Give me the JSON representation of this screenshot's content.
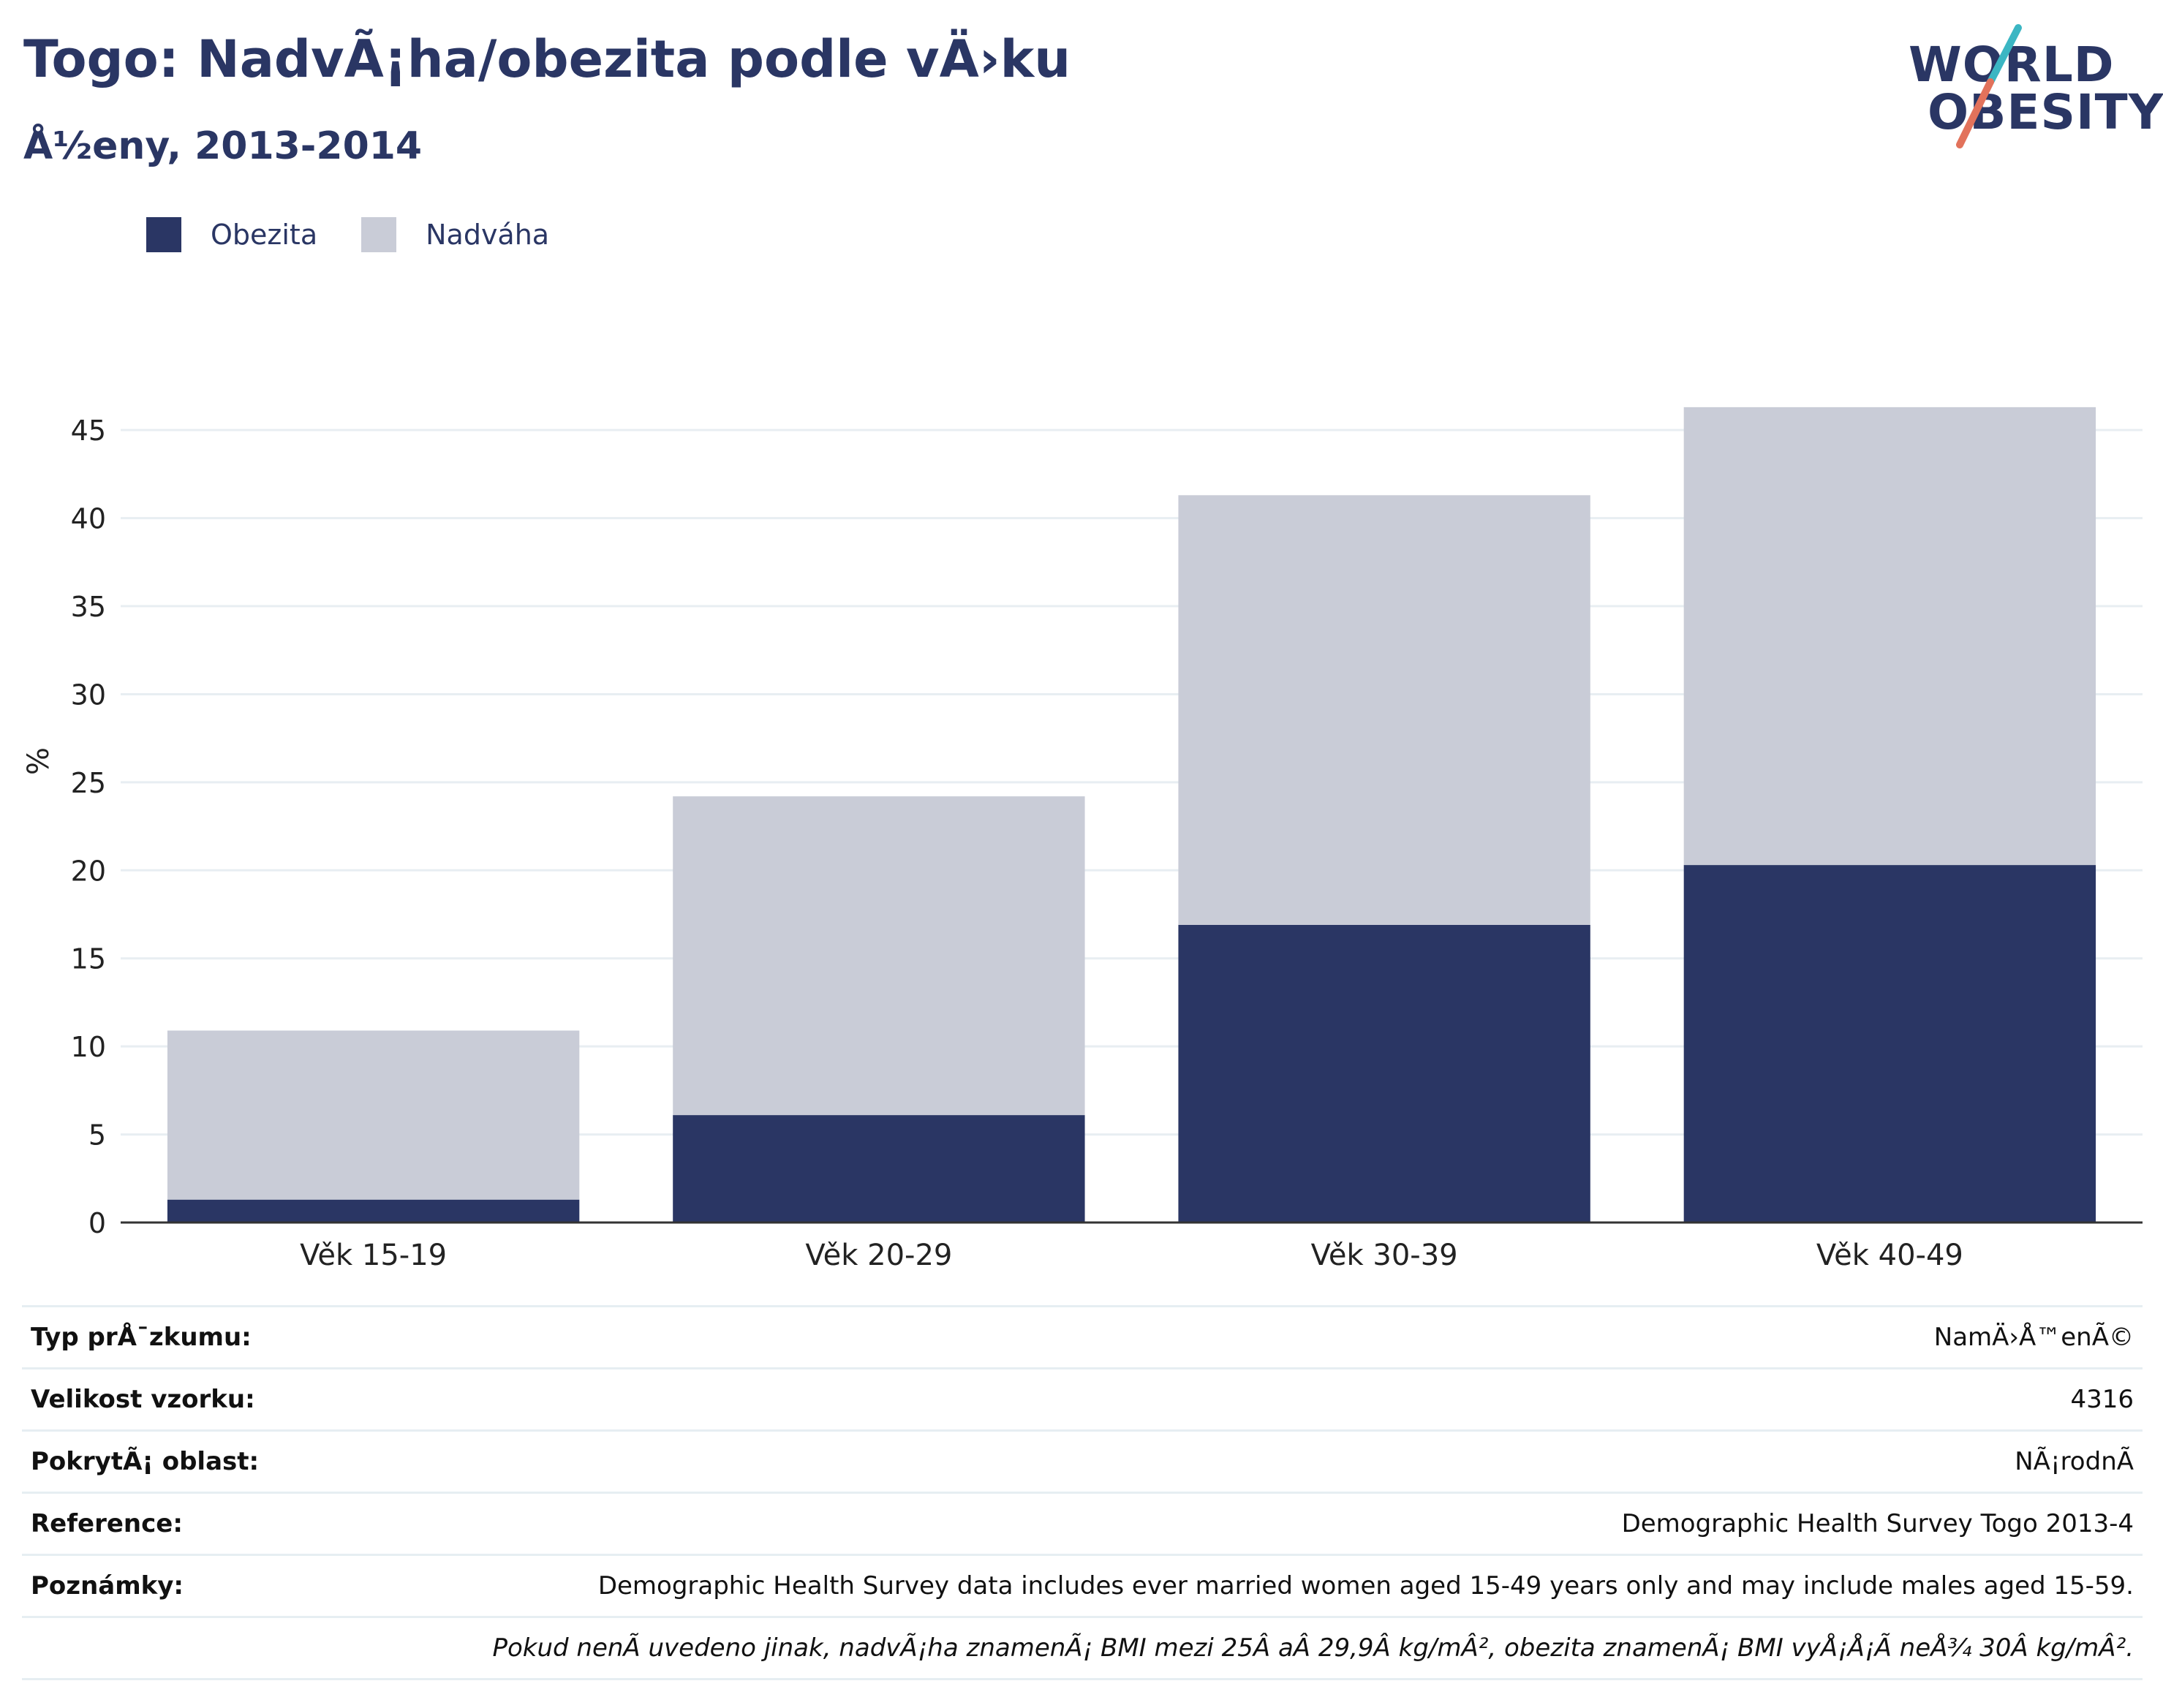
{
  "title": "Togo: NadvÃ¡ha/obezita podle vÄ›ku",
  "subtitle": "Å½eny, 2013-2014",
  "logo": {
    "line1": "WORLD",
    "line2": "OBESITY"
  },
  "colors": {
    "obesity": "#2a3664",
    "overweight": "#c9ccd7",
    "axis": "#333333",
    "grid": "#e8eef2"
  },
  "legend": [
    {
      "label": "Obezita",
      "color": "#2a3664"
    },
    {
      "label": "Nadváha",
      "color": "#c9ccd7"
    }
  ],
  "chart_data": {
    "type": "bar",
    "stacked": true,
    "categories": [
      "Věk 15-19",
      "Věk 20-29",
      "Věk 30-39",
      "Věk 40-49"
    ],
    "series": [
      {
        "name": "Obezita",
        "values": [
          1.3,
          6.1,
          16.9,
          20.3
        ]
      },
      {
        "name": "Nadváha",
        "values": [
          9.6,
          18.1,
          24.4,
          26.0
        ]
      }
    ],
    "ylabel": "%",
    "ylim": [
      0,
      47
    ],
    "yticks": [
      0,
      5,
      10,
      15,
      20,
      25,
      30,
      35,
      40,
      45
    ],
    "grid": true,
    "legend_position": "top-left"
  },
  "table": {
    "rows": [
      {
        "key": "Typ prÅ¯zkumu:",
        "value": "NamÄ›Å™enÃ©"
      },
      {
        "key": "Velikost vzorku:",
        "value": "4316"
      },
      {
        "key": "PokrytÃ¡ oblast:",
        "value": "NÃ¡rodnÃ"
      },
      {
        "key": "Reference:",
        "value": "Demographic Health Survey Togo 2013-4"
      },
      {
        "key": "Poznámky:",
        "value": "Demographic Health Survey data includes ever married women aged 15-49 years only and may include males aged 15-59."
      }
    ],
    "footnote": "Pokud nenÃ uvedeno jinak, nadvÃ¡ha znamenÃ¡ BMI mezi 25Â aÂ 29,9Â kg/mÂ², obezita znamenÃ¡ BMI vyÅ¡Å¡Ã neÅ¾ 30Â kg/mÂ²."
  }
}
